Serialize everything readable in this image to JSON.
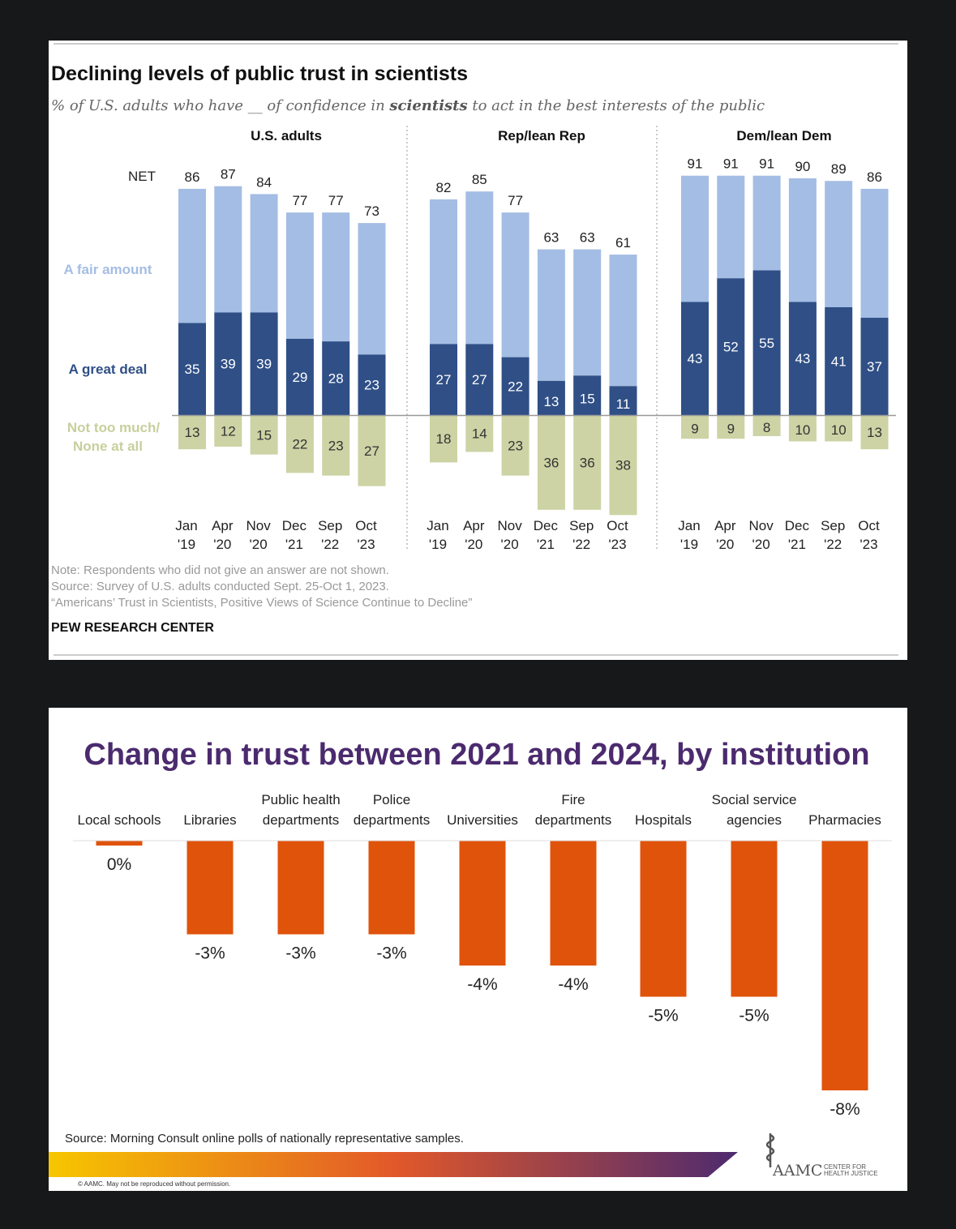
{
  "chart_data": [
    {
      "type": "bar",
      "stacked": true,
      "title": "Declining levels of public trust in scientists",
      "subtitle_parts": [
        "% of U.S. adults who have __ of confidence in ",
        "scientists",
        " to act in the best interests of the public"
      ],
      "net_label": "NET",
      "row_labels": {
        "fair": "A fair amount",
        "great": "A great deal",
        "none_line1": "Not too much/",
        "none_line2": "None at all"
      },
      "categories": [
        [
          "Jan",
          "'19"
        ],
        [
          "Apr",
          "'20"
        ],
        [
          "Nov",
          "'20"
        ],
        [
          "Dec",
          "'21"
        ],
        [
          "Sep",
          "'22"
        ],
        [
          "Oct",
          "'23"
        ]
      ],
      "groups": [
        {
          "name": "U.S. adults",
          "net": [
            86,
            87,
            84,
            77,
            77,
            73
          ],
          "great_deal": [
            35,
            39,
            39,
            29,
            28,
            23
          ],
          "not_too_much_none": [
            13,
            12,
            15,
            22,
            23,
            27
          ]
        },
        {
          "name": "Rep/lean Rep",
          "net": [
            82,
            85,
            77,
            63,
            63,
            61
          ],
          "great_deal": [
            27,
            27,
            22,
            13,
            15,
            11
          ],
          "not_too_much_none": [
            18,
            14,
            23,
            36,
            36,
            38
          ]
        },
        {
          "name": "Dem/lean Dem",
          "net": [
            91,
            91,
            91,
            90,
            89,
            86
          ],
          "great_deal": [
            43,
            52,
            55,
            43,
            41,
            37
          ],
          "not_too_much_none": [
            9,
            9,
            8,
            10,
            10,
            13
          ]
        }
      ],
      "colors": {
        "fair_amount": "#a4bde4",
        "great_deal": "#2f4f86",
        "not_too_much": "#cdd3a4"
      },
      "notes": [
        "Note: Respondents who did not give an answer are not shown.",
        "Source: Survey of U.S. adults conducted Sept. 25-Oct 1, 2023.",
        "“Americans’ Trust in Scientists, Positive Views of Science Continue to Decline”"
      ],
      "credit": "PEW RESEARCH CENTER"
    },
    {
      "type": "bar",
      "title": "Change in trust between 2021 and 2024, by institution",
      "categories": [
        [
          "Local schools"
        ],
        [
          "Libraries"
        ],
        [
          "Public health",
          "departments"
        ],
        [
          "Police",
          "departments"
        ],
        [
          "Universities"
        ],
        [
          "Fire",
          "departments"
        ],
        [
          "Hospitals"
        ],
        [
          "Social service",
          "agencies"
        ],
        [
          "Pharmacies"
        ]
      ],
      "values": [
        0,
        -3,
        -3,
        -3,
        -4,
        -4,
        -5,
        -5,
        -8
      ],
      "value_labels": [
        "0%",
        "-3%",
        "-3%",
        "-3%",
        "-4%",
        "-4%",
        "-5%",
        "-5%",
        "-8%"
      ],
      "unit": "%",
      "colors": {
        "bar": "#e0530b",
        "title": "#4b2a6e"
      },
      "source": "Source: Morning Consult online polls of nationally representative samples.",
      "copyright": "© AAMC. May not be reproduced without permission.",
      "logo": {
        "name": "AAMC",
        "sub_line1": "CENTER FOR",
        "sub_line2": "HEALTH JUSTICE"
      }
    }
  ]
}
